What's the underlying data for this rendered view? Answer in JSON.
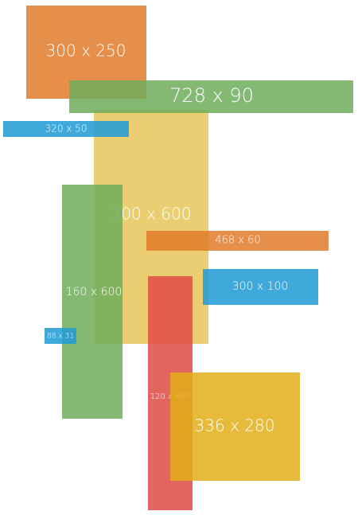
{
  "boxes": [
    {
      "label": "300 x 250"
    },
    {
      "label": "728 x 90"
    },
    {
      "label": "320 x 50"
    },
    {
      "label": "300 x 600"
    },
    {
      "label": "160 x 600"
    },
    {
      "label": "468 x 60"
    },
    {
      "label": "300 x 100"
    },
    {
      "label": "88 x 31"
    },
    {
      "label": "120 x 600"
    },
    {
      "label": "336 x 280"
    }
  ]
}
